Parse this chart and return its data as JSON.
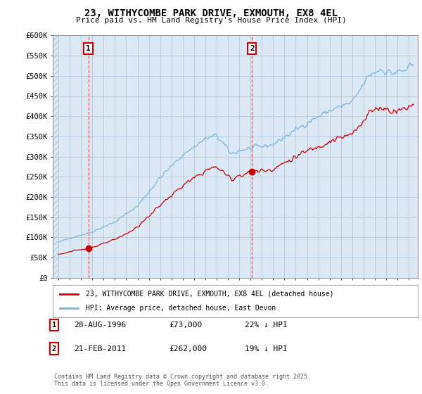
{
  "title": "23, WITHYCOMBE PARK DRIVE, EXMOUTH, EX8 4EL",
  "subtitle": "Price paid vs. HM Land Registry's House Price Index (HPI)",
  "legend_line1": "23, WITHYCOMBE PARK DRIVE, EXMOUTH, EX8 4EL (detached house)",
  "legend_line2": "HPI: Average price, detached house, East Devon",
  "annotation1_date": "28-AUG-1996",
  "annotation1_price": "£73,000",
  "annotation1_hpi": "22% ↓ HPI",
  "annotation2_date": "21-FEB-2011",
  "annotation2_price": "£262,000",
  "annotation2_hpi": "19% ↓ HPI",
  "footnote": "Contains HM Land Registry data © Crown copyright and database right 2025.\nThis data is licensed under the Open Government Licence v3.0.",
  "hpi_color": "#7ab3d9",
  "price_color": "#cc0000",
  "sale1_x": 1996.65,
  "sale1_y": 73000,
  "sale2_x": 2011.13,
  "sale2_y": 262000,
  "ylim": [
    0,
    600000
  ],
  "xlim": [
    1993.5,
    2025.8
  ],
  "yticks": [
    0,
    50000,
    100000,
    150000,
    200000,
    250000,
    300000,
    350000,
    400000,
    450000,
    500000,
    550000,
    600000
  ],
  "ytick_labels": [
    "£0",
    "£50K",
    "£100K",
    "£150K",
    "£200K",
    "£250K",
    "£300K",
    "£350K",
    "£400K",
    "£450K",
    "£500K",
    "£550K",
    "£600K"
  ],
  "xticks": [
    1994,
    1995,
    1996,
    1997,
    1998,
    1999,
    2000,
    2001,
    2002,
    2003,
    2004,
    2005,
    2006,
    2007,
    2008,
    2009,
    2010,
    2011,
    2012,
    2013,
    2014,
    2015,
    2016,
    2017,
    2018,
    2019,
    2020,
    2021,
    2022,
    2023,
    2024,
    2025
  ],
  "plot_bg_color": "#dce9f5",
  "grid_color": "#b0c8e0",
  "fig_bg_color": "#ffffff"
}
